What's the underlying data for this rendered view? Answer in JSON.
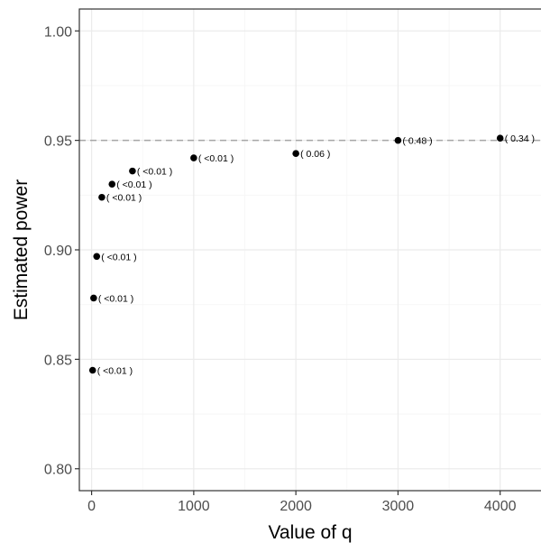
{
  "chart_data": {
    "type": "scatter",
    "title": "",
    "xlabel": "Value of q",
    "ylabel": "Estimated power",
    "xlim": [
      -120,
      4400
    ],
    "ylim": [
      0.79,
      1.01
    ],
    "x_ticks": [
      0,
      1000,
      2000,
      3000,
      4000
    ],
    "x_tick_labels": [
      "0",
      "1000",
      "2000",
      "3000",
      "4000"
    ],
    "y_ticks": [
      0.8,
      0.85,
      0.9,
      0.95,
      1.0
    ],
    "y_tick_labels": [
      "0.80",
      "0.85",
      "0.90",
      "0.95",
      "1.00"
    ],
    "grid": true,
    "reference_line": {
      "y": 0.95,
      "style": "dashed",
      "color": "#a6a6a6"
    },
    "points": [
      {
        "x": 10,
        "y": 0.845,
        "label": "( <0.01 )"
      },
      {
        "x": 20,
        "y": 0.878,
        "label": "( <0.01 )"
      },
      {
        "x": 50,
        "y": 0.897,
        "label": "( <0.01 )"
      },
      {
        "x": 100,
        "y": 0.924,
        "label": "( <0.01 )"
      },
      {
        "x": 200,
        "y": 0.93,
        "label": "( <0.01 )"
      },
      {
        "x": 400,
        "y": 0.936,
        "label": "( <0.01 )"
      },
      {
        "x": 1000,
        "y": 0.942,
        "label": "( <0.01 )"
      },
      {
        "x": 2000,
        "y": 0.944,
        "label": "( 0.06 )"
      },
      {
        "x": 3000,
        "y": 0.95,
        "label": "( 0.48 )"
      },
      {
        "x": 4000,
        "y": 0.951,
        "label": "( 0.34 )"
      }
    ],
    "colors": {
      "point": "#000000",
      "grid_major": "#ebebeb",
      "grid_minor": "#f5f5f5",
      "panel_border": "#333333",
      "tick_label": "#4d4d4d",
      "axis_title": "#000000"
    }
  }
}
